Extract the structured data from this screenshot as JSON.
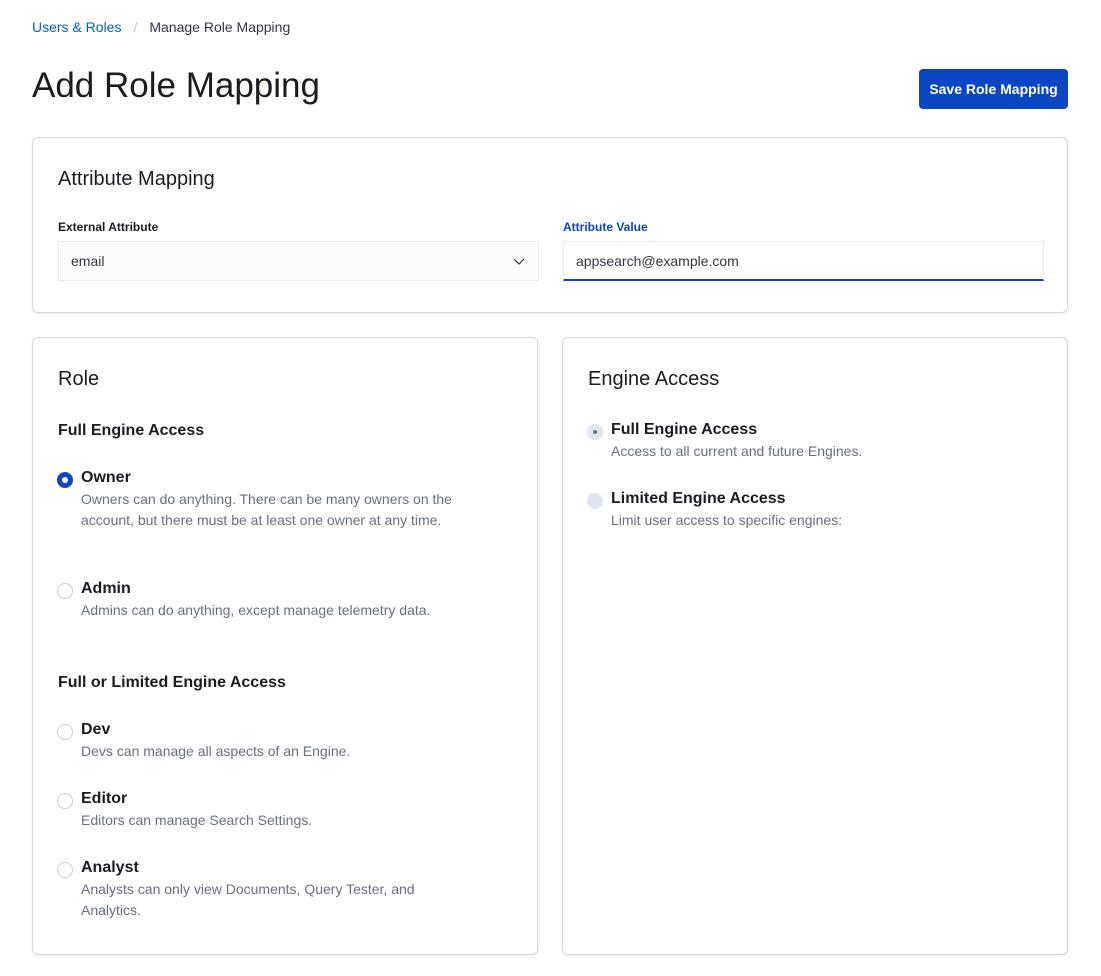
{
  "breadcrumb": {
    "parent": "Users & Roles",
    "current": "Manage Role Mapping"
  },
  "title": "Add Role Mapping",
  "save_label": "Save Role Mapping",
  "attribute_mapping": {
    "title": "Attribute Mapping",
    "external_label": "External Attribute",
    "external_value": "email",
    "value_label": "Attribute Value",
    "value": "appsearch@example.com"
  },
  "role": {
    "title": "Role",
    "group1": "Full Engine Access",
    "group2": "Full or Limited Engine Access",
    "options": [
      {
        "label": "Owner",
        "desc": "Owners can do anything. There can be many owners on the account, but there must be at least one owner at any time.",
        "checked": true
      },
      {
        "label": "Admin",
        "desc": "Admins can do anything, except manage telemetry data.",
        "checked": false
      },
      {
        "label": "Dev",
        "desc": "Devs can manage all aspects of an Engine.",
        "checked": false
      },
      {
        "label": "Editor",
        "desc": "Editors can manage Search Settings.",
        "checked": false
      },
      {
        "label": "Analyst",
        "desc": "Analysts can only view Documents, Query Tester, and Analytics.",
        "checked": false
      }
    ]
  },
  "engine_access": {
    "title": "Engine Access",
    "options": [
      {
        "label": "Full Engine Access",
        "desc": "Access to all current and future Engines.",
        "checked": true,
        "disabled": true
      },
      {
        "label": "Limited Engine Access",
        "desc": "Limit user access to specific engines:",
        "checked": false,
        "disabled": true
      }
    ]
  }
}
